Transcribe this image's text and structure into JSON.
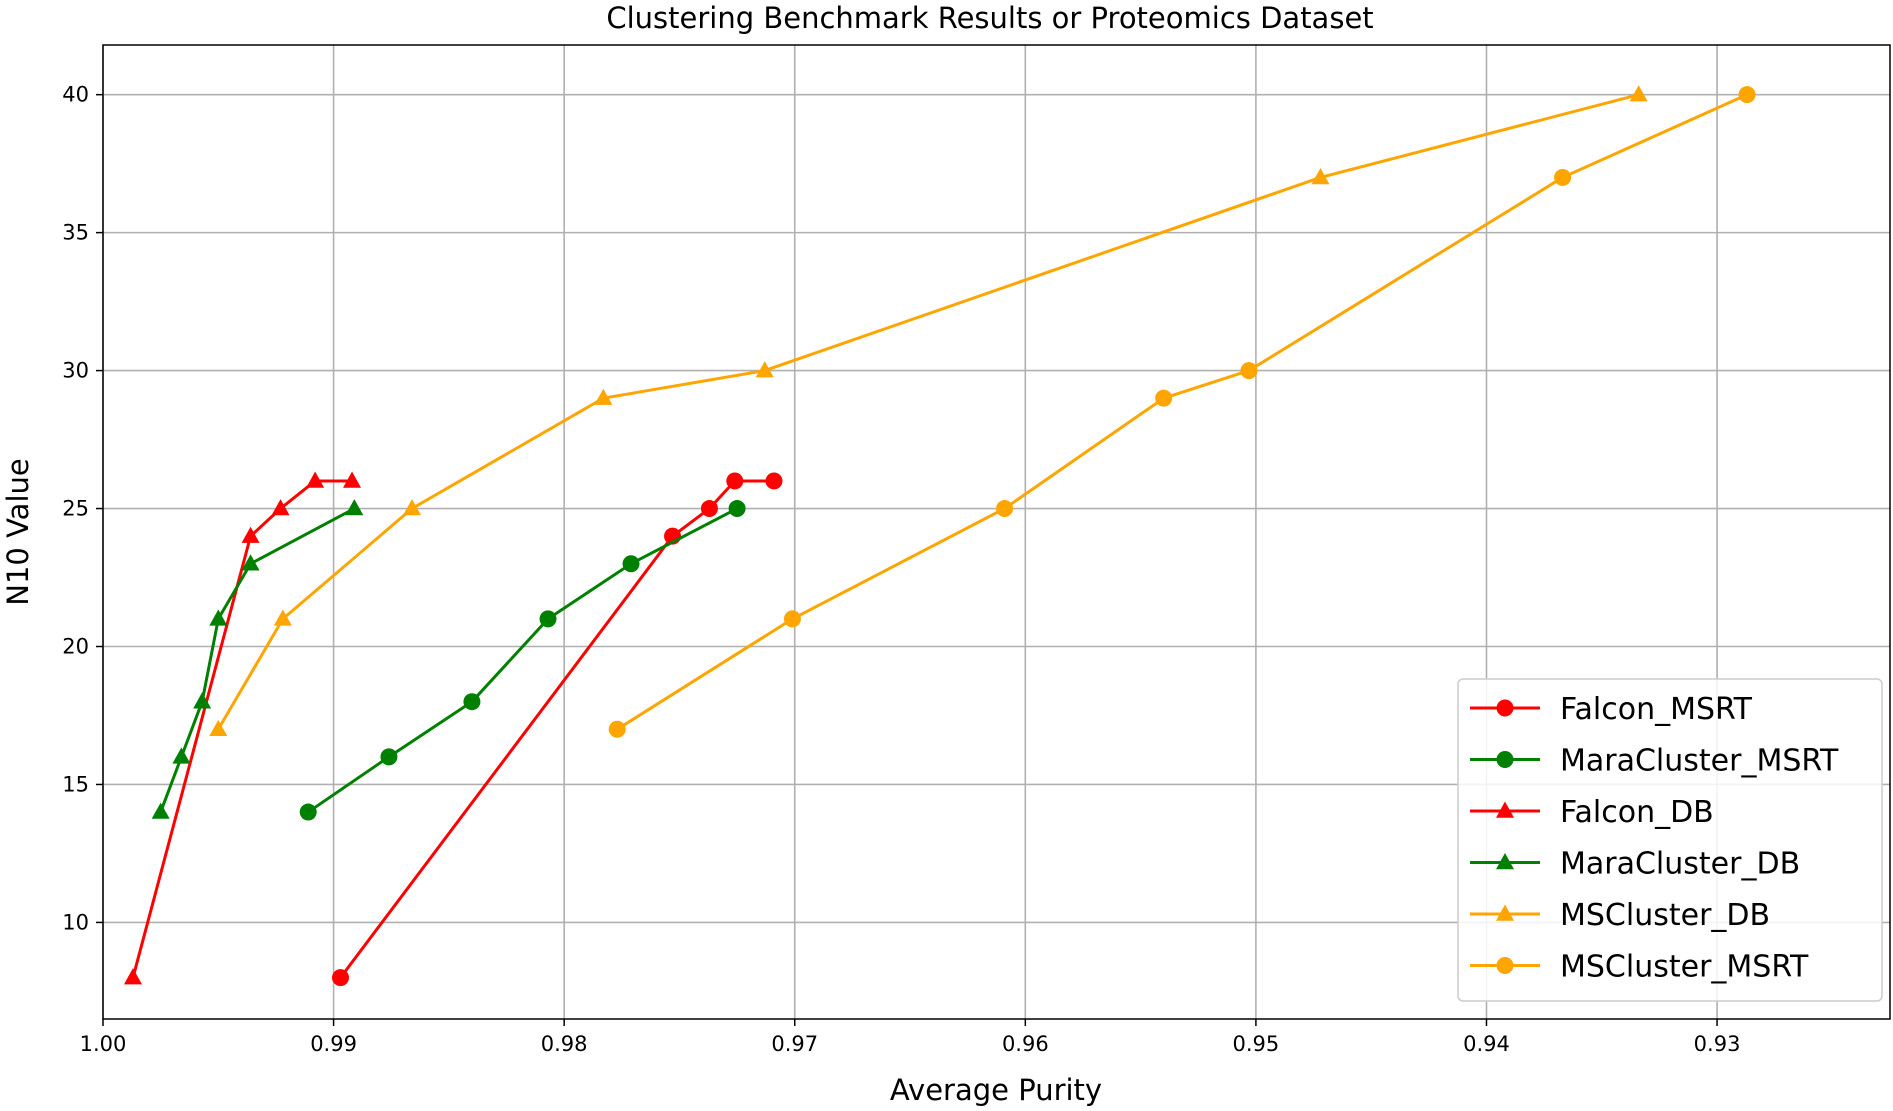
{
  "chart_data": {
    "type": "line",
    "title": "Clustering Benchmark Results or Proteomics Dataset",
    "xlabel": "Average Purity",
    "ylabel": "N10 Value",
    "xlim": [
      1.0,
      0.9225
    ],
    "ylim": [
      6.5,
      41.8
    ],
    "x_inverted": true,
    "xticks": [
      1.0,
      0.99,
      0.98,
      0.97,
      0.96,
      0.95,
      0.94,
      0.93
    ],
    "xtick_labels": [
      "1.00",
      "0.99",
      "0.98",
      "0.97",
      "0.96",
      "0.95",
      "0.94",
      "0.93"
    ],
    "yticks": [
      10,
      15,
      20,
      25,
      30,
      35,
      40
    ],
    "ytick_labels": [
      "10",
      "15",
      "20",
      "25",
      "30",
      "35",
      "40"
    ],
    "grid": true,
    "legend_position": "lower-right",
    "series": [
      {
        "name": "Falcon_MSRT",
        "color": "#ff0000",
        "marker": "circle",
        "points": [
          [
            0.9897,
            8
          ],
          [
            0.9753,
            24
          ],
          [
            0.9737,
            25
          ],
          [
            0.9726,
            26
          ],
          [
            0.9709,
            26
          ]
        ]
      },
      {
        "name": "MaraCluster_MSRT",
        "color": "#008000",
        "marker": "circle",
        "points": [
          [
            0.9911,
            14
          ],
          [
            0.9876,
            16
          ],
          [
            0.984,
            18
          ],
          [
            0.9807,
            21
          ],
          [
            0.9771,
            23
          ],
          [
            0.9725,
            25
          ]
        ]
      },
      {
        "name": "Falcon_DB",
        "color": "#ff0000",
        "marker": "triangle",
        "points": [
          [
            0.9987,
            8
          ],
          [
            0.9936,
            24
          ],
          [
            0.9923,
            25
          ],
          [
            0.9908,
            26
          ],
          [
            0.9892,
            26
          ]
        ]
      },
      {
        "name": "MaraCluster_DB",
        "color": "#008000",
        "marker": "triangle",
        "points": [
          [
            0.9975,
            14
          ],
          [
            0.9966,
            16
          ],
          [
            0.9957,
            18
          ],
          [
            0.995,
            21
          ],
          [
            0.9936,
            23
          ],
          [
            0.9891,
            25
          ]
        ]
      },
      {
        "name": "MSCluster_DB",
        "color": "#ffa500",
        "marker": "triangle",
        "points": [
          [
            0.995,
            17
          ],
          [
            0.9922,
            21
          ],
          [
            0.9866,
            25
          ],
          [
            0.9783,
            29
          ],
          [
            0.9713,
            30
          ],
          [
            0.9472,
            37
          ],
          [
            0.9334,
            40
          ]
        ]
      },
      {
        "name": "MSCluster_MSRT",
        "color": "#ffa500",
        "marker": "circle",
        "points": [
          [
            0.9777,
            17
          ],
          [
            0.9701,
            21
          ],
          [
            0.9609,
            25
          ],
          [
            0.954,
            29
          ],
          [
            0.9503,
            30
          ],
          [
            0.9367,
            37
          ],
          [
            0.9287,
            40
          ]
        ]
      }
    ]
  }
}
